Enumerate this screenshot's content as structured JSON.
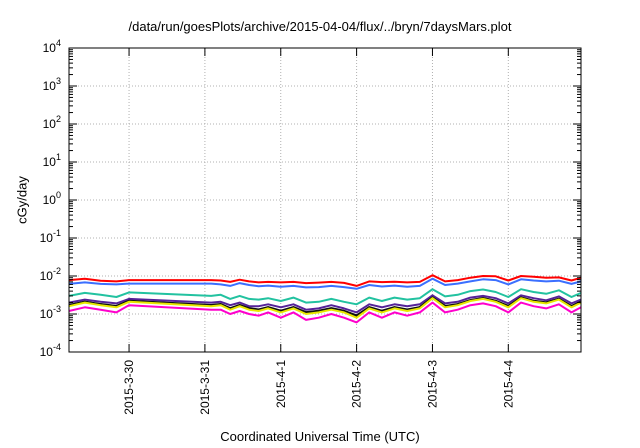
{
  "chart_data": {
    "type": "line",
    "title": "/data/run/goesPlots/archive/2015-04-04/flux/../bryn/7daysMars.plot",
    "xlabel": "Coordinated Universal Time (UTC)",
    "ylabel": "cGy/day",
    "yscale": "log",
    "ylim": [
      0.0001,
      10000
    ],
    "y_ticks": [
      {
        "base": "10",
        "exp": "-4"
      },
      {
        "base": "10",
        "exp": "-3"
      },
      {
        "base": "10",
        "exp": "-2"
      },
      {
        "base": "10",
        "exp": "-1"
      },
      {
        "base": "10",
        "exp": "0"
      },
      {
        "base": "10",
        "exp": "1"
      },
      {
        "base": "10",
        "exp": "2"
      },
      {
        "base": "10",
        "exp": "3"
      },
      {
        "base": "10",
        "exp": "4"
      }
    ],
    "x_ticks": [
      "2015-3-30",
      "2015-3-31",
      "2015-4-1",
      "2015-4-2",
      "2015-4-3",
      "2015-4-4"
    ],
    "xlim": [
      "2015-03-29 05:00",
      "2015-04-04 23:00"
    ],
    "grid": true,
    "x": [
      "2015-03-29 05:00",
      "2015-03-29 10:00",
      "2015-03-29 15:00",
      "2015-03-29 20:00",
      "2015-03-30 00:00",
      "2015-03-31 02:00",
      "2015-03-31 05:00",
      "2015-03-31 08:00",
      "2015-03-31 11:00",
      "2015-03-31 14:00",
      "2015-03-31 17:00",
      "2015-03-31 20:00",
      "2015-04-01 00:00",
      "2015-04-01 04:00",
      "2015-04-01 08:00",
      "2015-04-01 12:00",
      "2015-04-01 16:00",
      "2015-04-01 20:00",
      "2015-04-02 00:00",
      "2015-04-02 04:00",
      "2015-04-02 08:00",
      "2015-04-02 12:00",
      "2015-04-02 16:00",
      "2015-04-02 20:00",
      "2015-04-03 00:00",
      "2015-04-03 04:00",
      "2015-04-03 08:00",
      "2015-04-03 12:00",
      "2015-04-03 16:00",
      "2015-04-03 20:00",
      "2015-04-04 00:00",
      "2015-04-04 04:00",
      "2015-04-04 08:00",
      "2015-04-04 12:00",
      "2015-04-04 16:00",
      "2015-04-04 20:00",
      "2015-04-04 23:00"
    ],
    "series": [
      {
        "color": "#ff0000",
        "width": 2,
        "values": [
          0.0078,
          0.0085,
          0.0075,
          0.0072,
          0.0078,
          0.0078,
          0.0076,
          0.007,
          0.008,
          0.0072,
          0.0068,
          0.007,
          0.0068,
          0.007,
          0.0065,
          0.0067,
          0.007,
          0.0066,
          0.0055,
          0.0072,
          0.0069,
          0.0071,
          0.0068,
          0.007,
          0.0105,
          0.0072,
          0.0078,
          0.009,
          0.01,
          0.0098,
          0.0076,
          0.01,
          0.0095,
          0.009,
          0.0092,
          0.0076,
          0.009
        ]
      },
      {
        "color": "#3b6fff",
        "width": 2,
        "values": [
          0.0062,
          0.0068,
          0.0062,
          0.006,
          0.0063,
          0.0063,
          0.006,
          0.0055,
          0.0065,
          0.0058,
          0.0054,
          0.0056,
          0.0052,
          0.0055,
          0.005,
          0.0051,
          0.0055,
          0.0051,
          0.0046,
          0.0058,
          0.0053,
          0.0056,
          0.0052,
          0.0055,
          0.0085,
          0.0058,
          0.0063,
          0.0072,
          0.0082,
          0.0078,
          0.006,
          0.0082,
          0.0076,
          0.0072,
          0.0075,
          0.0062,
          0.0072
        ]
      },
      {
        "color": "#22c2a0",
        "width": 2,
        "values": [
          0.003,
          0.0036,
          0.0032,
          0.0028,
          0.0037,
          0.003,
          0.0032,
          0.0025,
          0.003,
          0.0025,
          0.0024,
          0.0026,
          0.0022,
          0.0027,
          0.002,
          0.0021,
          0.0025,
          0.0021,
          0.0018,
          0.0027,
          0.0022,
          0.0027,
          0.0024,
          0.0026,
          0.0045,
          0.0029,
          0.0032,
          0.004,
          0.0044,
          0.0038,
          0.0028,
          0.0045,
          0.0038,
          0.0034,
          0.0042,
          0.0028,
          0.0036
        ]
      },
      {
        "color": "#552299",
        "width": 2,
        "values": [
          0.002,
          0.0024,
          0.0021,
          0.0019,
          0.0025,
          0.002,
          0.0021,
          0.0017,
          0.002,
          0.0016,
          0.0016,
          0.0018,
          0.0015,
          0.0018,
          0.0013,
          0.0014,
          0.0017,
          0.0014,
          0.0011,
          0.0018,
          0.0015,
          0.0018,
          0.0016,
          0.0018,
          0.0031,
          0.0019,
          0.0021,
          0.0027,
          0.003,
          0.0026,
          0.0019,
          0.0031,
          0.0026,
          0.0023,
          0.0029,
          0.0019,
          0.0024
        ]
      },
      {
        "color": "#111111",
        "width": 2.5,
        "values": [
          0.0017,
          0.0021,
          0.0018,
          0.0016,
          0.0022,
          0.0017,
          0.0018,
          0.0014,
          0.0017,
          0.0014,
          0.0013,
          0.0015,
          0.0012,
          0.0015,
          0.0011,
          0.0012,
          0.0014,
          0.0012,
          0.0009,
          0.0015,
          0.0012,
          0.0015,
          0.0013,
          0.0015,
          0.0027,
          0.0016,
          0.0018,
          0.0023,
          0.0026,
          0.0022,
          0.0016,
          0.0027,
          0.0022,
          0.002,
          0.0025,
          0.0016,
          0.0021
        ]
      },
      {
        "color": "#e8e800",
        "width": 2,
        "values": [
          0.0016,
          0.002,
          0.0017,
          0.0015,
          0.0021,
          0.0016,
          0.0017,
          0.0013,
          0.0016,
          0.0013,
          0.0012,
          0.0014,
          0.0011,
          0.0014,
          0.001,
          0.0011,
          0.0013,
          0.0011,
          0.0008,
          0.0014,
          0.0011,
          0.0014,
          0.0012,
          0.0014,
          0.0026,
          0.0015,
          0.0017,
          0.0022,
          0.0025,
          0.0021,
          0.0015,
          0.0026,
          0.0021,
          0.0019,
          0.0024,
          0.0015,
          0.002
        ]
      },
      {
        "color": "#ff00cc",
        "width": 2,
        "values": [
          0.0012,
          0.0015,
          0.0013,
          0.0011,
          0.0017,
          0.0013,
          0.0013,
          0.001,
          0.0012,
          0.001,
          0.0009,
          0.0011,
          0.0008,
          0.0011,
          0.0007,
          0.0008,
          0.001,
          0.0008,
          0.0006,
          0.0011,
          0.0008,
          0.0011,
          0.0009,
          0.0011,
          0.002,
          0.0011,
          0.0013,
          0.0017,
          0.0019,
          0.0016,
          0.0011,
          0.002,
          0.0016,
          0.0014,
          0.0018,
          0.0011,
          0.0015
        ]
      }
    ]
  }
}
